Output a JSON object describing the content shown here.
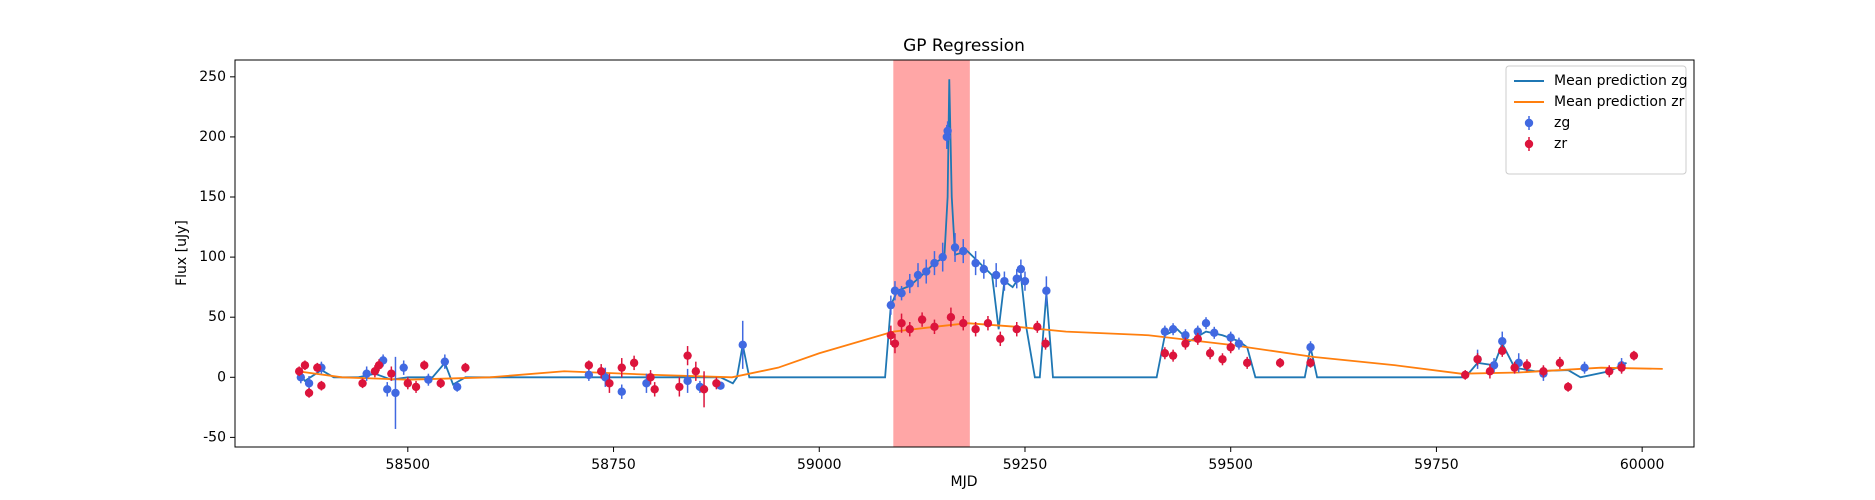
{
  "chart_data": {
    "type": "line",
    "title": "GP Regression",
    "x_label": "MJD",
    "y_label": "Flux [uJy]",
    "xlim": [
      58290,
      60063
    ],
    "ylim": [
      -58,
      264
    ],
    "xticks": [
      58500,
      58750,
      59000,
      59250,
      59500,
      59750,
      60000
    ],
    "yticks": [
      -50,
      0,
      50,
      100,
      150,
      200,
      250
    ],
    "legend": "upper right",
    "span": {
      "x": [
        59090,
        59183
      ],
      "color": "#ff0000"
    },
    "series": [
      {
        "name": "Mean prediction zg",
        "type": "line",
        "color": "#1f77b4",
        "x": [
          58366,
          58375,
          58395,
          58410,
          58440,
          58460,
          58480,
          58500,
          58530,
          58545,
          58555,
          58570,
          58880,
          58895,
          58900,
          58907,
          58915,
          59080,
          59087,
          59095,
          59110,
          59125,
          59140,
          59152,
          59156,
          59158,
          59161,
          59165,
          59180,
          59195,
          59210,
          59218,
          59225,
          59235,
          59245,
          59252,
          59262,
          59268,
          59276,
          59284,
          59410,
          59420,
          59435,
          59450,
          59470,
          59490,
          59510,
          59520,
          59530,
          59590,
          59597,
          59605,
          59785,
          59800,
          59820,
          59830,
          59845,
          59870,
          59910,
          59925,
          59960,
          59981
        ],
        "values": [
          5,
          -3,
          6,
          0,
          0,
          3,
          -2,
          0,
          0,
          12,
          -6,
          0,
          0,
          -5,
          0,
          27,
          0,
          0,
          60,
          72,
          76,
          85,
          95,
          100,
          150,
          248,
          150,
          102,
          105,
          95,
          85,
          40,
          80,
          75,
          85,
          40,
          0,
          0,
          70,
          0,
          0,
          35,
          40,
          30,
          38,
          35,
          30,
          25,
          0,
          0,
          25,
          0,
          0,
          12,
          10,
          28,
          8,
          5,
          6,
          0,
          5,
          12
        ]
      },
      {
        "name": "Mean prediction zr",
        "type": "line",
        "color": "#ff7f0e",
        "x": [
          58366,
          58420,
          58500,
          58600,
          58690,
          58800,
          58894,
          58950,
          59000,
          59090,
          59140,
          59180,
          59240,
          59300,
          59400,
          59500,
          59600,
          59700,
          59780,
          59850,
          59950,
          60025
        ],
        "values": [
          5,
          0,
          -2,
          0,
          5,
          2,
          0,
          8,
          20,
          38,
          42,
          45,
          42,
          38,
          35,
          27,
          17,
          10,
          3,
          4,
          8,
          7
        ]
      },
      {
        "name": "zg",
        "type": "errorbar",
        "color": "#4169e1",
        "x": [
          58370,
          58380,
          58395,
          58450,
          58470,
          58475,
          58485,
          58495,
          58525,
          58545,
          58560,
          58720,
          58740,
          58760,
          58790,
          58840,
          58855,
          58880,
          58907,
          59087,
          59092,
          59100,
          59110,
          59120,
          59130,
          59140,
          59150,
          59155,
          59156,
          59165,
          59175,
          59190,
          59200,
          59215,
          59225,
          59240,
          59245,
          59250,
          59276,
          59420,
          59430,
          59445,
          59460,
          59470,
          59480,
          59500,
          59510,
          59597,
          59800,
          59820,
          59830,
          59850,
          59880,
          59930,
          59975
        ],
        "values": [
          0,
          -5,
          8,
          3,
          14,
          -10,
          -13,
          8,
          -2,
          13,
          -8,
          2,
          0,
          -12,
          -5,
          -3,
          -8,
          -7,
          27,
          60,
          72,
          70,
          78,
          85,
          88,
          95,
          100,
          200,
          205,
          108,
          105,
          95,
          90,
          85,
          80,
          82,
          90,
          80,
          72,
          38,
          40,
          35,
          38,
          45,
          37,
          33,
          28,
          25,
          15,
          10,
          30,
          12,
          3,
          8,
          10
        ],
        "errors": [
          5,
          6,
          5,
          6,
          5,
          6,
          30,
          6,
          5,
          6,
          4,
          5,
          8,
          6,
          8,
          10,
          5,
          3,
          20,
          8,
          8,
          6,
          8,
          10,
          10,
          10,
          12,
          10,
          8,
          12,
          10,
          10,
          8,
          10,
          8,
          8,
          8,
          8,
          12,
          5,
          5,
          5,
          5,
          5,
          5,
          5,
          5,
          5,
          8,
          6,
          8,
          8,
          6,
          5,
          6
        ]
      },
      {
        "name": "zr",
        "type": "errorbar",
        "color": "#dc143c",
        "x": [
          58368,
          58375,
          58380,
          58390,
          58395,
          58445,
          58460,
          58465,
          58480,
          58500,
          58510,
          58520,
          58540,
          58570,
          58720,
          58735,
          58745,
          58760,
          58775,
          58795,
          58800,
          58830,
          58840,
          58850,
          58860,
          58875,
          59087,
          59092,
          59100,
          59110,
          59125,
          59140,
          59160,
          59175,
          59190,
          59205,
          59220,
          59240,
          59265,
          59275,
          59420,
          59430,
          59445,
          59460,
          59475,
          59490,
          59500,
          59520,
          59560,
          59597,
          59785,
          59800,
          59815,
          59830,
          59845,
          59860,
          59880,
          59900,
          59910,
          59960,
          59975,
          59990
        ],
        "values": [
          5,
          10,
          -13,
          8,
          -7,
          -5,
          5,
          10,
          3,
          -5,
          -8,
          10,
          -5,
          8,
          10,
          5,
          -5,
          8,
          12,
          0,
          -10,
          -8,
          18,
          5,
          -10,
          -5,
          35,
          28,
          45,
          40,
          48,
          42,
          50,
          45,
          40,
          45,
          32,
          40,
          42,
          28,
          20,
          18,
          28,
          32,
          20,
          15,
          25,
          12,
          12,
          12,
          2,
          15,
          5,
          22,
          8,
          10,
          5,
          12,
          -8,
          5,
          8,
          18
        ],
        "errors": [
          4,
          4,
          4,
          4,
          4,
          4,
          5,
          5,
          6,
          5,
          5,
          4,
          4,
          4,
          4,
          6,
          8,
          8,
          6,
          6,
          6,
          8,
          8,
          8,
          15,
          5,
          8,
          8,
          8,
          6,
          6,
          6,
          8,
          6,
          6,
          6,
          6,
          6,
          5,
          5,
          5,
          5,
          5,
          5,
          5,
          5,
          5,
          5,
          4,
          4,
          4,
          5,
          6,
          5,
          5,
          5,
          5,
          5,
          4,
          5,
          5,
          4
        ]
      }
    ]
  }
}
